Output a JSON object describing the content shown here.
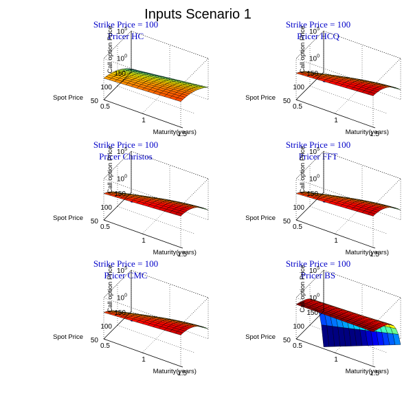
{
  "figure": {
    "title": "Inputs Scenario 1"
  },
  "chart_data": [
    {
      "type": "surface",
      "title": "Strike Price = 100",
      "subtitle": "Pricer HC",
      "xlabel": "Maturity(years)",
      "ylabel": "Spot Price",
      "zlabel": "Call option Price",
      "x_ticks": [
        "0.5",
        "1",
        "1.5"
      ],
      "y_ticks": [
        "50",
        "100",
        "150"
      ],
      "z_tick_base": "10",
      "z_tick_exponents": [
        "0",
        "5"
      ],
      "xlim": [
        0.5,
        1.5
      ],
      "ylim": [
        50,
        150
      ],
      "zscale": "log",
      "zlim_log10": [
        0,
        5
      ],
      "shape": "hc",
      "colormap": "jet",
      "grid": true
    },
    {
      "type": "surface",
      "title": "Strike Price = 100",
      "subtitle": "Pricer HCQ",
      "xlabel": "Maturity(years)",
      "ylabel": "Spot Price",
      "zlabel": "Call option Price",
      "x_ticks": [
        "0.5",
        "1",
        "1.5"
      ],
      "y_ticks": [
        "50",
        "100",
        "150"
      ],
      "z_tick_base": "10",
      "z_tick_exponents": [
        "0",
        "5"
      ],
      "xlim": [
        0.5,
        1.5
      ],
      "ylim": [
        50,
        150
      ],
      "zscale": "log",
      "zlim_log10": [
        0,
        5
      ],
      "shape": "standard",
      "colormap": "jet",
      "grid": true
    },
    {
      "type": "surface",
      "title": "Strike Price = 100",
      "subtitle": "Pricer Christos",
      "xlabel": "Maturity(years)",
      "ylabel": "Spot Price",
      "zlabel": "Call option Price",
      "x_ticks": [
        "0.5",
        "1",
        "1.5"
      ],
      "y_ticks": [
        "50",
        "100",
        "150"
      ],
      "z_tick_base": "10",
      "z_tick_exponents": [
        "0",
        "5"
      ],
      "xlim": [
        0.5,
        1.5
      ],
      "ylim": [
        50,
        150
      ],
      "zscale": "log",
      "zlim_log10": [
        0,
        5
      ],
      "shape": "standard",
      "colormap": "jet",
      "grid": true
    },
    {
      "type": "surface",
      "title": "Strike Price = 100",
      "subtitle": "Pricer FFT",
      "xlabel": "Maturity(years)",
      "ylabel": "Spot Price",
      "zlabel": "Call option Price",
      "x_ticks": [
        "0.5",
        "1",
        "1.5"
      ],
      "y_ticks": [
        "50",
        "100",
        "150"
      ],
      "z_tick_base": "10",
      "z_tick_exponents": [
        "0",
        "5"
      ],
      "xlim": [
        0.5,
        1.5
      ],
      "ylim": [
        50,
        150
      ],
      "zscale": "log",
      "zlim_log10": [
        0,
        5
      ],
      "shape": "standard",
      "colormap": "jet",
      "grid": true
    },
    {
      "type": "surface",
      "title": "Strike Price = 100",
      "subtitle": "Pricer CMC",
      "xlabel": "Maturity(years)",
      "ylabel": "Spot Price",
      "zlabel": "Call option Price",
      "x_ticks": [
        "0.5",
        "1",
        "1.5"
      ],
      "y_ticks": [
        "50",
        "100",
        "150"
      ],
      "z_tick_base": "10",
      "z_tick_exponents": [
        "0",
        "5"
      ],
      "xlim": [
        0.5,
        1.5
      ],
      "ylim": [
        50,
        150
      ],
      "zscale": "log",
      "zlim_log10": [
        0,
        5
      ],
      "shape": "standard",
      "colormap": "jet",
      "grid": true
    },
    {
      "type": "surface",
      "title": "Strike Price = 100",
      "subtitle": "Pricer BS",
      "xlabel": "Maturity(years)",
      "ylabel": "Spot Price",
      "zlabel": "Call option Price",
      "x_ticks": [
        "0.5",
        "1",
        "1.5"
      ],
      "y_ticks": [
        "50",
        "100",
        "150"
      ],
      "z_tick_base": "10",
      "z_tick_exponents": [
        "0",
        "5"
      ],
      "xlim": [
        0.5,
        1.5
      ],
      "ylim": [
        50,
        150
      ],
      "zscale": "log",
      "zlim_log10": [
        0,
        5
      ],
      "shape": "bs",
      "colormap": "jet",
      "grid": true
    }
  ]
}
